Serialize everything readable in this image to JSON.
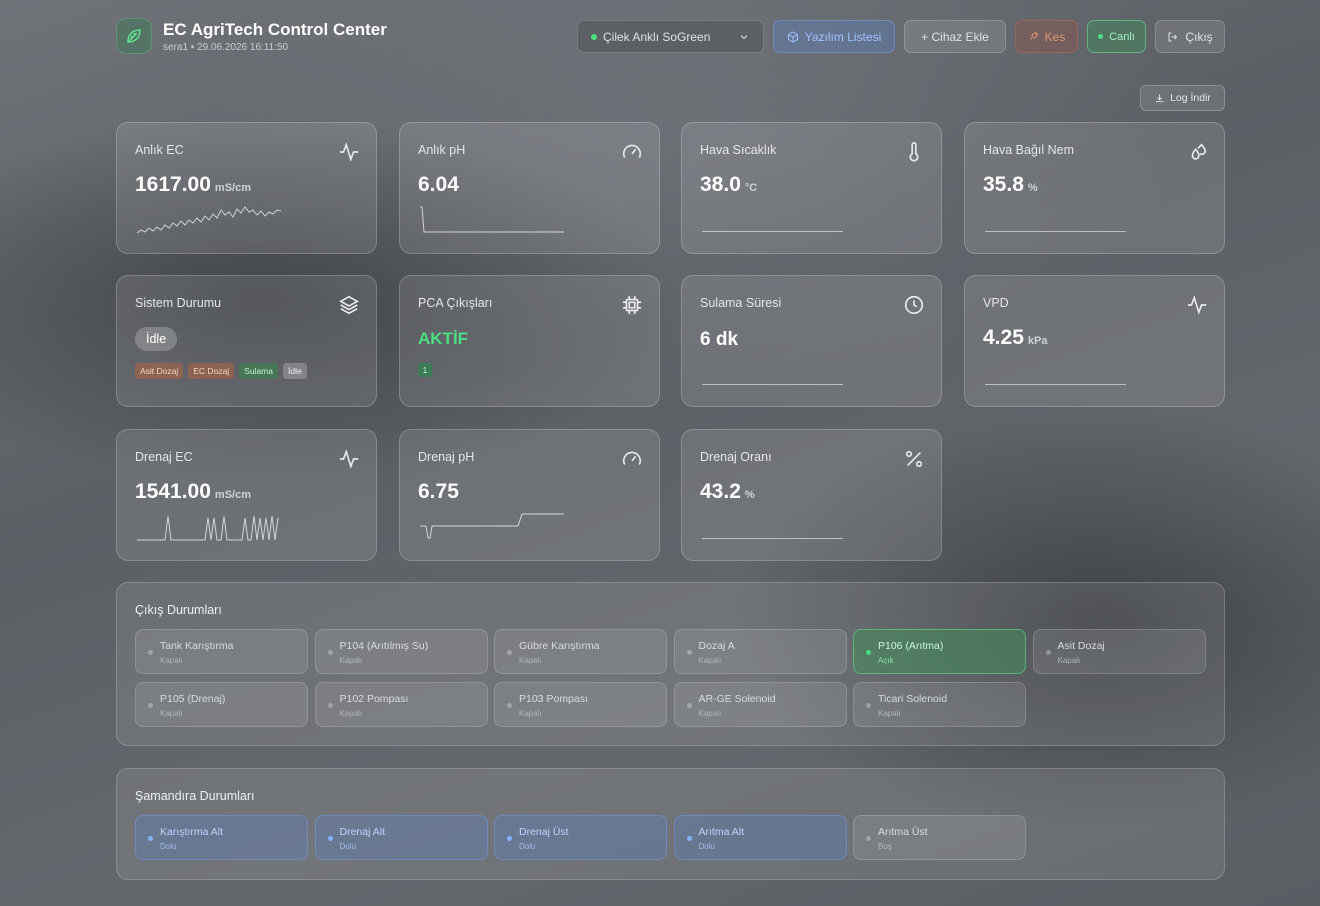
{
  "header": {
    "title": "EC AgriTech Control Center",
    "subtitle": "sera1 • 29.06.2026 16:11:50",
    "device_select": "Çilek Anklı SoGreen",
    "software_list": "Yazılım Listesi",
    "add_device": "+ Cihaz Ekle",
    "cut": "Kes",
    "live": "Canlı",
    "logout": "Çıkış",
    "log_download": "Log İndir"
  },
  "metrics": {
    "ec": {
      "label": "Anlık EC",
      "value": "1617.00",
      "unit": "mS/cm",
      "icon": "activity-icon"
    },
    "ph": {
      "label": "Anlık pH",
      "value": "6.04",
      "icon": "gauge-icon"
    },
    "temp": {
      "label": "Hava Sıcaklık",
      "value": "38.0",
      "unit": "°C",
      "icon": "thermometer-icon"
    },
    "humidity": {
      "label": "Hava Bağıl Nem",
      "value": "35.8",
      "unit": "%",
      "icon": "droplets-icon"
    },
    "system": {
      "label": "Sistem Durumu",
      "status": "İdle",
      "icon": "layers-icon",
      "tags": [
        "Asit Dozaj",
        "EC Dozaj",
        "Sulama",
        "İdle"
      ]
    },
    "pca": {
      "label": "PCA Çıkışları",
      "status": "AKTİF",
      "count": "1",
      "icon": "cpu-icon"
    },
    "irrigation": {
      "label": "Sulama Süresi",
      "value": "6 dk",
      "icon": "clock-icon"
    },
    "vpd": {
      "label": "VPD",
      "value": "4.25",
      "unit": "kPa",
      "icon": "activity-icon"
    },
    "drain_ec": {
      "label": "Drenaj EC",
      "value": "1541.00",
      "unit": "mS/cm",
      "icon": "activity-icon"
    },
    "drain_ph": {
      "label": "Drenaj pH",
      "value": "6.75",
      "icon": "gauge-icon"
    },
    "drain_ratio": {
      "label": "Drenaj Oranı",
      "value": "43.2",
      "unit": "%",
      "icon": "percent-icon"
    }
  },
  "outputs": {
    "title": "Çıkış Durumları",
    "items": [
      {
        "name": "Tank Karıştırma",
        "state": "Kapalı",
        "on": false
      },
      {
        "name": "P104 (Arıtılmış Su)",
        "state": "Kapalı",
        "on": false
      },
      {
        "name": "Gübre Karıştırma",
        "state": "Kapalı",
        "on": false
      },
      {
        "name": "Dozaj A",
        "state": "Kapalı",
        "on": false
      },
      {
        "name": "P106 (Arıtma)",
        "state": "Açık",
        "on": true
      },
      {
        "name": "Asit Dozaj",
        "state": "Kapalı",
        "on": false
      },
      {
        "name": "P105 (Drenaj)",
        "state": "Kapalı",
        "on": false
      },
      {
        "name": "P102 Pompası",
        "state": "Kapalı",
        "on": false
      },
      {
        "name": "P103 Pompası",
        "state": "Kapalı",
        "on": false
      },
      {
        "name": "AR-GE Solenoid",
        "state": "Kapalı",
        "on": false
      },
      {
        "name": "Ticari Solenoid",
        "state": "Kapalı",
        "on": false
      }
    ]
  },
  "floats": {
    "title": "Şamandıra Durumları",
    "items": [
      {
        "name": "Karıştırma Alt",
        "state": "Dolu",
        "full": true
      },
      {
        "name": "Drenaj Alt",
        "state": "Dolu",
        "full": true
      },
      {
        "name": "Drenaj Üst",
        "state": "Dolu",
        "full": true
      },
      {
        "name": "Arıtma Alt",
        "state": "Dolu",
        "full": true
      },
      {
        "name": "Arıtma Üst",
        "state": "Boş",
        "full": false
      }
    ]
  },
  "colors": {
    "accent_green": "#4ade80",
    "accent_blue": "#7fb3ff",
    "accent_orange": "#d89870"
  }
}
